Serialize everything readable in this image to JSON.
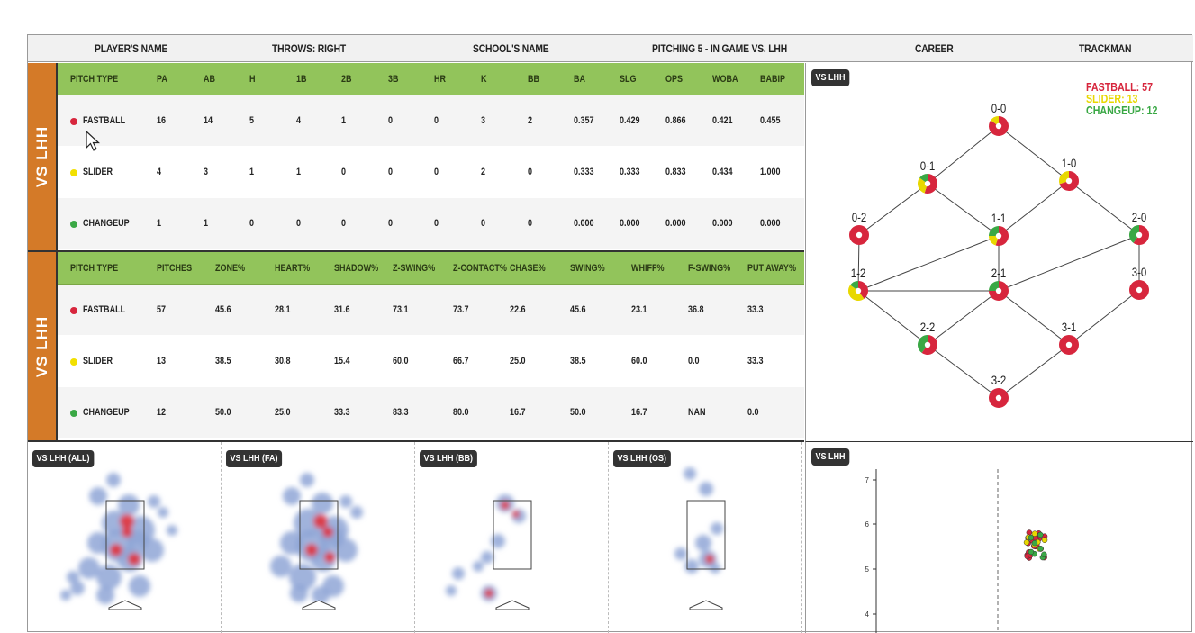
{
  "header": {
    "player": "PLAYER'S NAME",
    "throws": "THROWS: RIGHT",
    "school": "SCHOOL'S NAME",
    "view": "PITCHING 5 - IN GAME VS. LHH",
    "career": "CAREER",
    "trackman": "TRACKMAN"
  },
  "side_label": "VS LHH",
  "table1": {
    "columns": [
      "PITCH TYPE",
      "PA",
      "AB",
      "H",
      "1B",
      "2B",
      "3B",
      "HR",
      "K",
      "BB",
      "BA",
      "SLG",
      "OPS",
      "WOBA",
      "BABIP"
    ],
    "rows": [
      {
        "pitch": "FASTBALL",
        "color": "#d7263d",
        "values": [
          "16",
          "14",
          "5",
          "4",
          "1",
          "0",
          "0",
          "3",
          "2",
          "0.357",
          "0.429",
          "0.866",
          "0.421",
          "0.455"
        ]
      },
      {
        "pitch": "SLIDER",
        "color": "#f2e000",
        "values": [
          "4",
          "3",
          "1",
          "1",
          "0",
          "0",
          "0",
          "2",
          "0",
          "0.333",
          "0.333",
          "0.833",
          "0.434",
          "1.000"
        ]
      },
      {
        "pitch": "CHANGEUP",
        "color": "#3aa845",
        "values": [
          "1",
          "1",
          "0",
          "0",
          "0",
          "0",
          "0",
          "0",
          "0",
          "0.000",
          "0.000",
          "0.000",
          "0.000",
          "0.000"
        ]
      }
    ]
  },
  "table2": {
    "columns": [
      "PITCH TYPE",
      "PITCHES",
      "ZONE%",
      "HEART%",
      "SHADOW%",
      "Z-SWING%",
      "Z-CONTACT%",
      "CHASE%",
      "SWING%",
      "WHIFF%",
      "F-SWING%",
      "PUT AWAY%"
    ],
    "rows": [
      {
        "pitch": "FASTBALL",
        "color": "#d7263d",
        "values": [
          "57",
          "45.6",
          "28.1",
          "31.6",
          "73.1",
          "73.7",
          "22.6",
          "45.6",
          "23.1",
          "36.8",
          "33.3"
        ]
      },
      {
        "pitch": "SLIDER",
        "color": "#f2e000",
        "values": [
          "13",
          "38.5",
          "30.8",
          "15.4",
          "60.0",
          "66.7",
          "25.0",
          "38.5",
          "60.0",
          "0.0",
          "33.3"
        ]
      },
      {
        "pitch": "CHANGEUP",
        "color": "#3aa845",
        "values": [
          "12",
          "50.0",
          "25.0",
          "33.3",
          "83.3",
          "80.0",
          "16.7",
          "50.0",
          "16.7",
          "NAN",
          "0.0"
        ]
      }
    ]
  },
  "count_chart": {
    "chip": "VS LHH",
    "legend": [
      {
        "label": "FASTBALL: 57",
        "color": "#d7263d"
      },
      {
        "label": "SLIDER: 13",
        "color": "#e8d800"
      },
      {
        "label": "CHANGEUP: 12",
        "color": "#3aa845"
      }
    ],
    "nodes": [
      {
        "count": "0-0",
        "mix": [
          0.85,
          0.15,
          0
        ]
      },
      {
        "count": "0-1",
        "mix": [
          0.55,
          0.3,
          0.15
        ]
      },
      {
        "count": "1-0",
        "mix": [
          0.7,
          0.3,
          0
        ]
      },
      {
        "count": "0-2",
        "mix": [
          1,
          0,
          0
        ]
      },
      {
        "count": "1-1",
        "mix": [
          0.55,
          0.2,
          0.25
        ]
      },
      {
        "count": "2-0",
        "mix": [
          0.6,
          0,
          0.4
        ]
      },
      {
        "count": "1-2",
        "mix": [
          0.4,
          0.45,
          0.15
        ]
      },
      {
        "count": "2-1",
        "mix": [
          0.75,
          0,
          0.25
        ]
      },
      {
        "count": "3-0",
        "mix": [
          1,
          0,
          0
        ]
      },
      {
        "count": "2-2",
        "mix": [
          0.6,
          0,
          0.4
        ]
      },
      {
        "count": "3-1",
        "mix": [
          1,
          0,
          0
        ]
      },
      {
        "count": "3-2",
        "mix": [
          1,
          0,
          0
        ]
      }
    ]
  },
  "heatmaps": [
    {
      "chip": "VS LHH (ALL)"
    },
    {
      "chip": "VS LHH (FA)"
    },
    {
      "chip": "VS LHH (BB)"
    },
    {
      "chip": "VS LHH (OS)"
    }
  ],
  "release_chart": {
    "chip": "VS LHH",
    "y_ticks": [
      "7",
      "6",
      "5",
      "4"
    ]
  }
}
